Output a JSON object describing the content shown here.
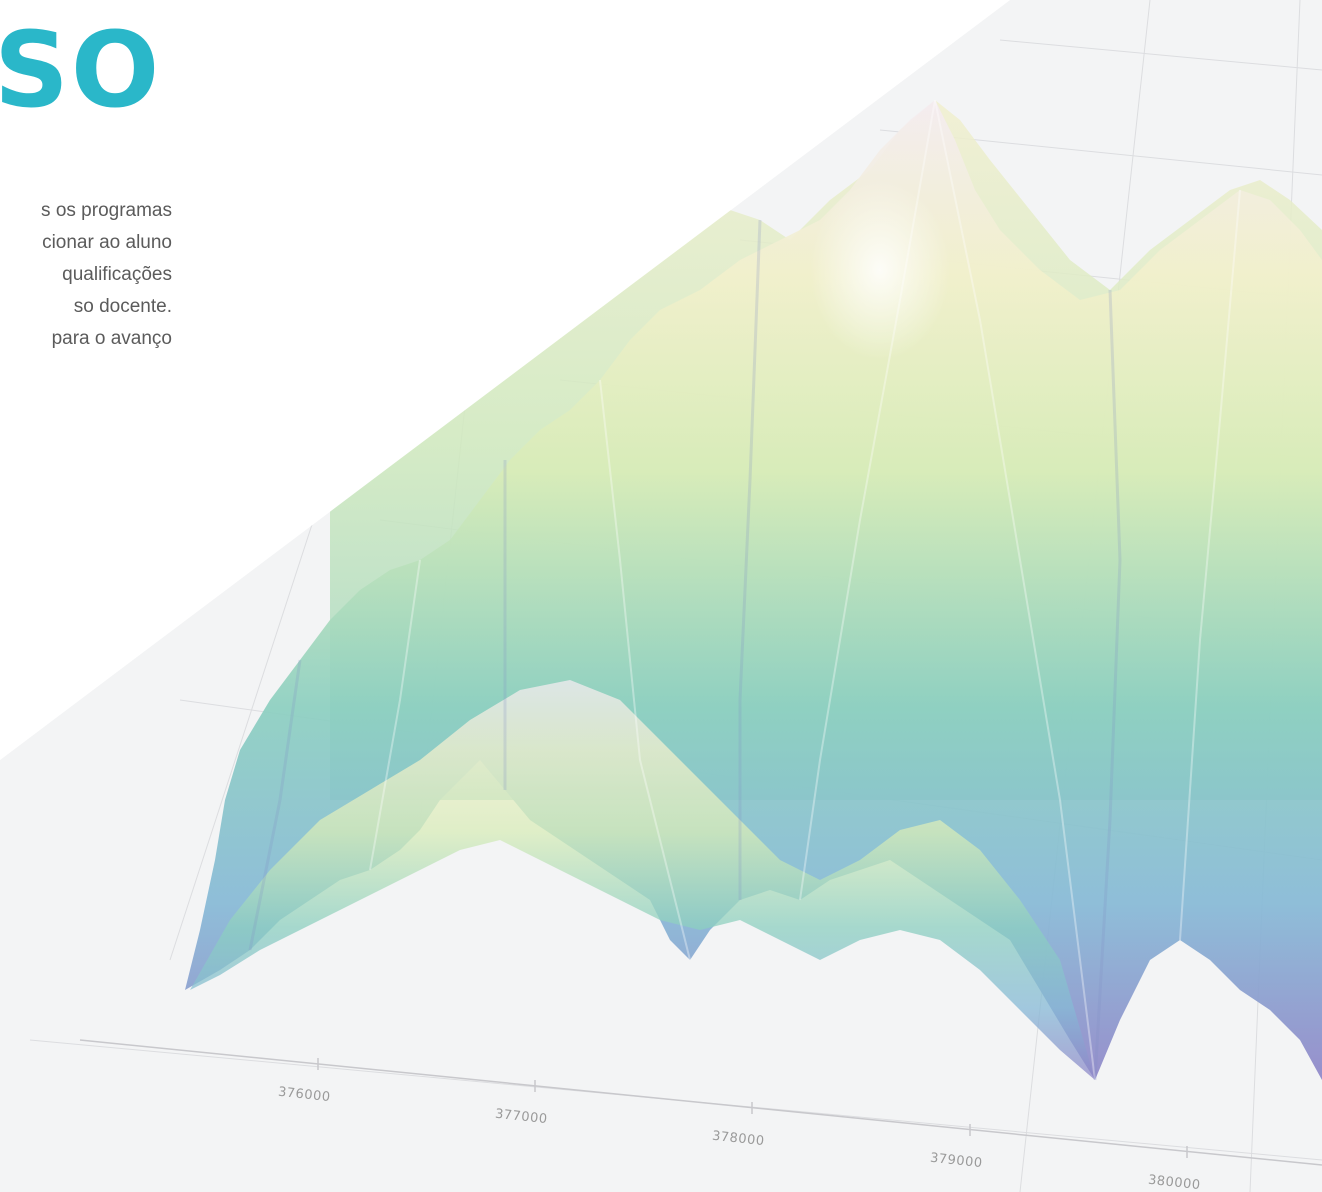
{
  "heading": "SO",
  "paragraph_lines": [
    "s os programas",
    "cionar ao aluno",
    "qualificações",
    "so docente.",
    "para o avanço"
  ],
  "colors": {
    "accent": "#2ab7c9",
    "text": "#5b5b5b",
    "terrain_low": "#8f86c8",
    "terrain_mid": "#8ccfc0",
    "terrain_high": "#f2f0cc",
    "terrain_peak": "#f4ecf2"
  },
  "axis": {
    "tick_labels": [
      "376000",
      "377000",
      "378000",
      "379000",
      "380000"
    ]
  }
}
